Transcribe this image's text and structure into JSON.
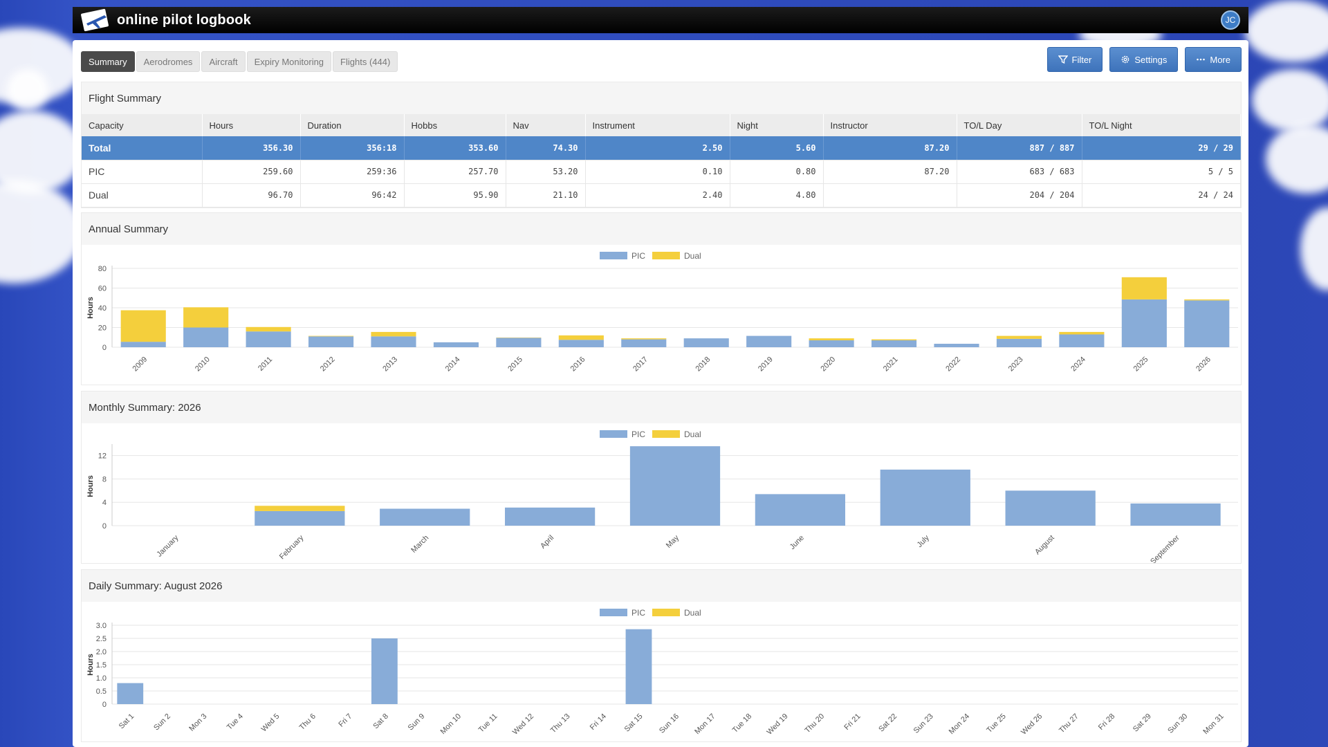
{
  "app": {
    "title": "online pilot logbook",
    "user_initials": "JC"
  },
  "tabs": [
    {
      "label": "Summary",
      "active": true
    },
    {
      "label": "Aerodromes"
    },
    {
      "label": "Aircraft"
    },
    {
      "label": "Expiry Monitoring"
    },
    {
      "label": "Flights (444)"
    }
  ],
  "toolbar": {
    "filter": "Filter",
    "settings": "Settings",
    "more": "More"
  },
  "flight_summary": {
    "title": "Flight Summary",
    "columns": [
      "Capacity",
      "Hours",
      "Duration",
      "Hobbs",
      "Nav",
      "Instrument",
      "Night",
      "Instructor",
      "TO/L Day",
      "TO/L Night"
    ],
    "rows": [
      [
        "Total",
        "356.30",
        "356:18",
        "353.60",
        "74.30",
        "2.50",
        "5.60",
        "87.20",
        "887 / 887",
        "29 / 29"
      ],
      [
        "PIC",
        "259.60",
        "259:36",
        "257.70",
        "53.20",
        "0.10",
        "0.80",
        "87.20",
        "683 / 683",
        "5 / 5"
      ],
      [
        "Dual",
        "96.70",
        "96:42",
        "95.90",
        "21.10",
        "2.40",
        "4.80",
        "",
        "204 / 204",
        "24 / 24"
      ]
    ]
  },
  "colors": {
    "pic": "#88acd8",
    "dual": "#f4cf3c",
    "grid": "#e6e6e6"
  },
  "chart_data": [
    {
      "type": "bar",
      "title": "Annual Summary",
      "ylabel": "Hours",
      "stacked": true,
      "legend": "top-center",
      "ylim": [
        0,
        80
      ],
      "yticks": [
        0,
        20,
        40,
        60,
        80
      ],
      "categories": [
        "2009",
        "2010",
        "2011",
        "2012",
        "2013",
        "2014",
        "2015",
        "2016",
        "2017",
        "2018",
        "2019",
        "2020",
        "2021",
        "2022",
        "2023",
        "2024",
        "2025",
        "2026"
      ],
      "series": [
        {
          "name": "PIC",
          "values": [
            5.5,
            20,
            16,
            11,
            11,
            5,
            9.5,
            7.5,
            8,
            9,
            11.5,
            7,
            7,
            3.5,
            8.5,
            13,
            48.5,
            47.5
          ]
        },
        {
          "name": "Dual",
          "values": [
            32,
            20.5,
            4.5,
            0.5,
            4.5,
            0,
            0.3,
            4.5,
            1,
            0,
            0,
            2,
            1,
            0,
            3,
            2.5,
            22.5,
            1
          ]
        }
      ]
    },
    {
      "type": "bar",
      "title": "Monthly Summary: 2026",
      "ylabel": "Hours",
      "stacked": true,
      "legend": "top-center",
      "ylim": [
        0,
        13.5
      ],
      "yticks": [
        0,
        4,
        8,
        12
      ],
      "categories": [
        "January",
        "February",
        "March",
        "April",
        "May",
        "June",
        "July",
        "August",
        "September"
      ],
      "series": [
        {
          "name": "PIC",
          "values": [
            0,
            2.5,
            2.9,
            3.1,
            13.6,
            5.4,
            9.6,
            6,
            3.8
          ]
        },
        {
          "name": "Dual",
          "values": [
            0,
            0.9,
            0,
            0,
            0,
            0,
            0,
            0,
            0
          ]
        }
      ]
    },
    {
      "type": "bar",
      "title": "Daily Summary: August 2026",
      "ylabel": "Hours",
      "stacked": true,
      "legend": "top-center",
      "ylim": [
        0,
        3.0
      ],
      "yticks": [
        0,
        0.5,
        1.0,
        1.5,
        2.0,
        2.5,
        3.0
      ],
      "ytick_labels": [
        "0",
        "0.5",
        "1.0",
        "1.5",
        "2.0",
        "2.5",
        "3.0"
      ],
      "categories": [
        "Sat 1",
        "Sun 2",
        "Mon 3",
        "Tue 4",
        "Wed 5",
        "Thu 6",
        "Fri 7",
        "Sat 8",
        "Sun 9",
        "Mon 10",
        "Tue 11",
        "Wed 12",
        "Thu 13",
        "Fri 14",
        "Sat 15",
        "Sun 16",
        "Mon 17",
        "Tue 18",
        "Wed 19",
        "Thu 20",
        "Fri 21",
        "Sat 22",
        "Sun 23",
        "Mon 24",
        "Tue 25",
        "Wed 26",
        "Thu 27",
        "Fri 28",
        "Sat 29",
        "Sun 30",
        "Mon 31"
      ],
      "series": [
        {
          "name": "PIC",
          "values": [
            0.8,
            0,
            0,
            0,
            0,
            0,
            0,
            2.5,
            0,
            0,
            0,
            0,
            0,
            0,
            2.85,
            0,
            0,
            0,
            0,
            0,
            0,
            0,
            0,
            0,
            0,
            0,
            0,
            0,
            0,
            0,
            0
          ]
        },
        {
          "name": "Dual",
          "values": [
            0,
            0,
            0,
            0,
            0,
            0,
            0,
            0,
            0,
            0,
            0,
            0,
            0,
            0,
            0,
            0,
            0,
            0,
            0,
            0,
            0,
            0,
            0,
            0,
            0,
            0,
            0,
            0,
            0,
            0,
            0
          ]
        }
      ]
    }
  ]
}
